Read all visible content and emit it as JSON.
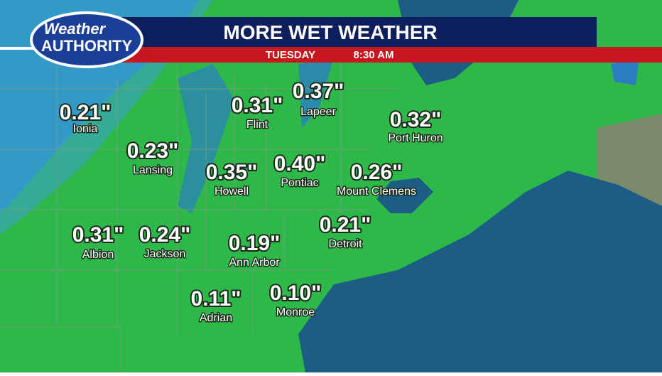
{
  "header": {
    "logo_top": "Weather",
    "logo_bottom": "AUTHORITY",
    "title": "MORE WET WEATHER",
    "day": "TUESDAY",
    "time": "8:30 AM"
  },
  "cities": [
    {
      "name": "Ionia",
      "amount": "0.21\""
    },
    {
      "name": "Lansing",
      "amount": "0.23\""
    },
    {
      "name": "Flint",
      "amount": "0.31\""
    },
    {
      "name": "Lapeer",
      "amount": "0.37\""
    },
    {
      "name": "Port Huron",
      "amount": "0.32\""
    },
    {
      "name": "Howell",
      "amount": "0.35\""
    },
    {
      "name": "Pontiac",
      "amount": "0.40\""
    },
    {
      "name": "Mount Clemens",
      "amount": "0.26\""
    },
    {
      "name": "Albion",
      "amount": "0.31\""
    },
    {
      "name": "Jackson",
      "amount": "0.24\""
    },
    {
      "name": "Ann Arbor",
      "amount": "0.19\""
    },
    {
      "name": "Detroit",
      "amount": "0.21\""
    },
    {
      "name": "Adrian",
      "amount": "0.11\""
    },
    {
      "name": "Monroe",
      "amount": "0.10\""
    }
  ]
}
